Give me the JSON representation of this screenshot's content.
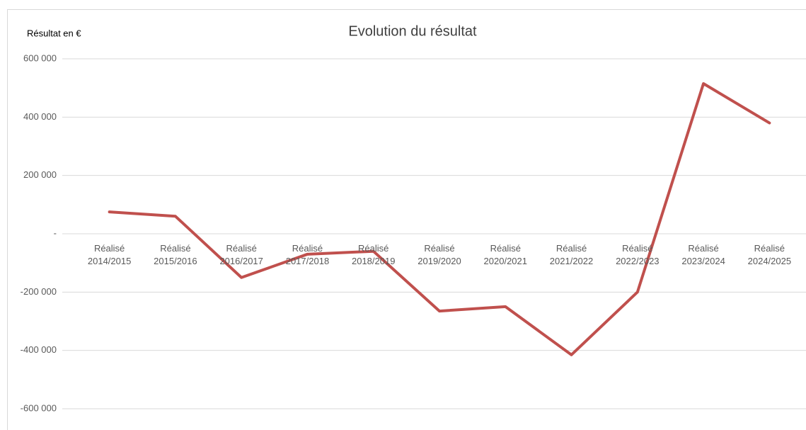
{
  "chart_data": {
    "type": "line",
    "title": "Evolution du résultat",
    "y_label": "Résultat en €",
    "categories": [
      "Réalisé 2014/2015",
      "Réalisé 2015/2016",
      "Réalisé 2016/2017",
      "Réalisé 2017/2018",
      "Réalisé 2018/2019",
      "Réalisé 2019/2020",
      "Réalisé 2020/2021",
      "Réalisé 2021/2022",
      "Réalisé 2022/2023",
      "Réalisé 2023/2024",
      "Réalisé 2024/2025"
    ],
    "values": [
      75000,
      60000,
      -150000,
      -70000,
      -60000,
      -265000,
      -250000,
      -415000,
      -200000,
      515000,
      380000
    ],
    "color": "#c0504d",
    "ylim": [
      -600000,
      600000
    ],
    "yticks": [
      {
        "value": -600000,
        "label": "-600 000"
      },
      {
        "value": -400000,
        "label": "-400 000"
      },
      {
        "value": -200000,
        "label": "-200 000"
      },
      {
        "value": 0,
        "label": "-"
      },
      {
        "value": 200000,
        "label": "200 000"
      },
      {
        "value": 400000,
        "label": "400 000"
      },
      {
        "value": 600000,
        "label": "600 000"
      }
    ],
    "grid": true
  }
}
